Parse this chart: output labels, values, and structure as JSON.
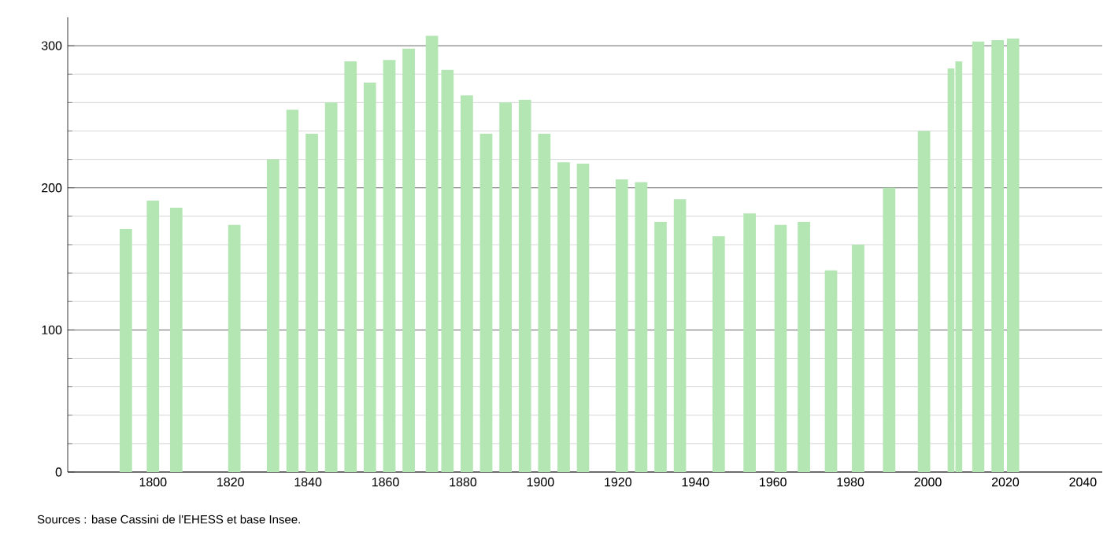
{
  "chart_data": {
    "type": "bar",
    "x": [
      1793,
      1800,
      1806,
      1821,
      1831,
      1836,
      1841,
      1846,
      1851,
      1856,
      1861,
      1866,
      1872,
      1876,
      1881,
      1886,
      1891,
      1896,
      1901,
      1906,
      1911,
      1921,
      1926,
      1931,
      1936,
      1946,
      1954,
      1962,
      1968,
      1975,
      1982,
      1990,
      1999,
      2006,
      2008,
      2013,
      2018,
      2022
    ],
    "values": [
      171,
      191,
      186,
      174,
      220,
      255,
      238,
      260,
      289,
      274,
      290,
      298,
      307,
      283,
      265,
      238,
      260,
      262,
      238,
      218,
      217,
      206,
      204,
      176,
      192,
      166,
      182,
      174,
      176,
      142,
      160,
      200,
      240,
      284,
      289,
      303,
      304,
      305
    ],
    "color": "#b3e6b3",
    "xlim": [
      1778,
      2045
    ],
    "xticks": [
      1800,
      1820,
      1840,
      1860,
      1880,
      1900,
      1920,
      1940,
      1960,
      1980,
      2000,
      2020,
      2040
    ],
    "ylim": [
      0,
      320
    ],
    "yticks": [
      0,
      100,
      200,
      300
    ],
    "grid": "y",
    "annotations": [
      "Sources : base Cassini de l'EHESS et base Insee."
    ]
  }
}
